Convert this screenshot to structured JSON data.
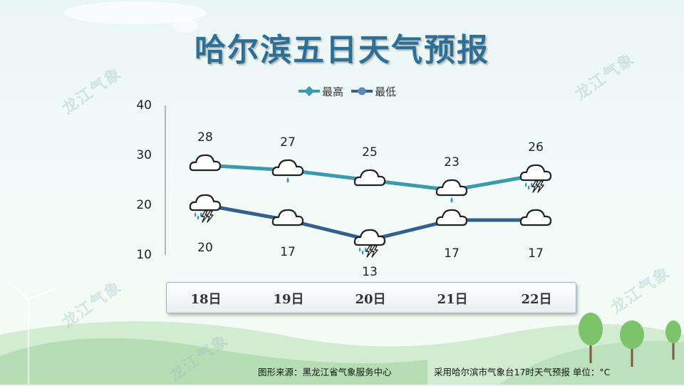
{
  "title": "哈尔滨五日天气预报",
  "watermark": "龙江气象",
  "footer": {
    "source": "图形来源：黑龙江省气象服务中心",
    "note": "采用哈尔滨市气象台17时天气预报 单位：°C"
  },
  "colors": {
    "high": "#3b9ab0",
    "low": "#33608f",
    "title": "#2f6f96"
  },
  "chart_data": {
    "type": "line",
    "categories": [
      "18日",
      "19日",
      "20日",
      "21日",
      "22日"
    ],
    "series": [
      {
        "name": "最高",
        "values": [
          28,
          27,
          25,
          23,
          26
        ],
        "icons": [
          "cloudy-icon",
          "light-rain-icon",
          "cloudy-icon",
          "light-rain-icon",
          "thunderstorm-icon"
        ]
      },
      {
        "name": "最低",
        "values": [
          20,
          17,
          13,
          17,
          17
        ],
        "icons": [
          "thunderstorm-icon",
          "cloudy-icon",
          "thunderstorm-icon",
          "cloudy-icon",
          "cloudy-icon"
        ]
      }
    ],
    "yticks": [
      10,
      20,
      30,
      40
    ],
    "ylim": [
      10,
      40
    ],
    "grid": false,
    "legend": "top-center"
  }
}
